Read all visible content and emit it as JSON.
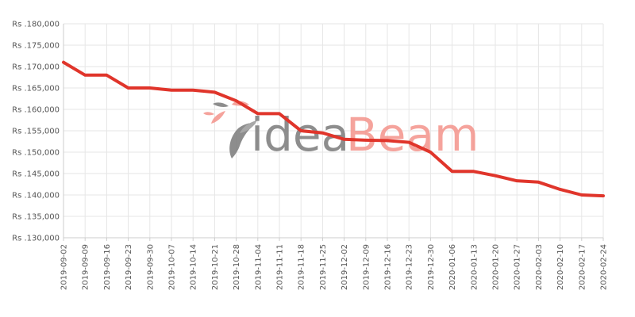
{
  "chart_data": {
    "type": "line",
    "title": "",
    "xlabel": "",
    "ylabel": "",
    "ylim": [
      130000,
      180000
    ],
    "yticks": [
      130000,
      135000,
      140000,
      145000,
      150000,
      155000,
      160000,
      165000,
      170000,
      175000,
      180000
    ],
    "ytick_labels": [
      "Rs .130,000",
      "Rs .135,000",
      "Rs .140,000",
      "Rs .145,000",
      "Rs .150,000",
      "Rs .155,000",
      "Rs .160,000",
      "Rs .165,000",
      "Rs .170,000",
      "Rs .175,000",
      "Rs .180,000"
    ],
    "grid": true,
    "legend": "none",
    "categories": [
      "2019-09-02",
      "2019-09-09",
      "2019-09-16",
      "2019-09-23",
      "2019-09-30",
      "2019-10-07",
      "2019-10-14",
      "2019-10-21",
      "2019-10-28",
      "2019-11-04",
      "2019-11-11",
      "2019-11-18",
      "2019-11-25",
      "2019-12-02",
      "2019-12-09",
      "2019-12-16",
      "2019-12-23",
      "2019-12-30",
      "2020-01-06",
      "2020-01-13",
      "2020-01-20",
      "2020-01-27",
      "2020-02-03",
      "2020-02-10",
      "2020-02-17",
      "2020-02-24"
    ],
    "series": [
      {
        "color": "#e0352b",
        "values": [
          171000,
          168000,
          168000,
          165000,
          165000,
          164500,
          164500,
          164000,
          162000,
          159000,
          159000,
          155000,
          154500,
          153000,
          152800,
          152700,
          152300,
          150000,
          145500,
          145500,
          144500,
          143300,
          143000,
          141300,
          140000,
          139800
        ]
      }
    ]
  },
  "watermark": {
    "text_part1": "idea",
    "text_part2": "Beam",
    "color_part1": "#7a7a7a",
    "color_part2": "#f4938b"
  },
  "colors": {
    "grid": "#e6e6e6",
    "axis": "#cccccc",
    "tick_text": "#555555"
  }
}
